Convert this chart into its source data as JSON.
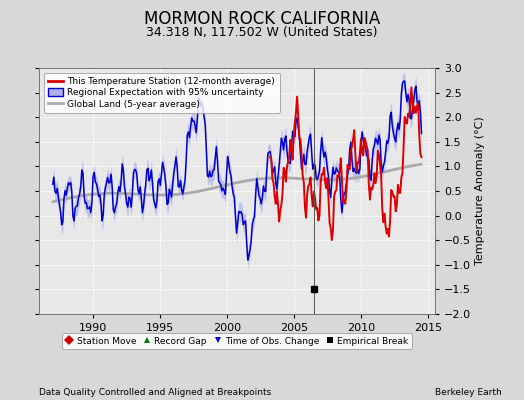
{
  "title": "MORMON ROCK CALIFORNIA",
  "subtitle": "34.318 N, 117.502 W (United States)",
  "ylabel": "Temperature Anomaly (°C)",
  "xlabel_left": "Data Quality Controlled and Aligned at Breakpoints",
  "xlabel_right": "Berkeley Earth",
  "ylim": [
    -2,
    3
  ],
  "xlim": [
    1986.0,
    2015.5
  ],
  "yticks": [
    -2,
    -1.5,
    -1,
    -0.5,
    0,
    0.5,
    1,
    1.5,
    2,
    2.5,
    3
  ],
  "xticks": [
    1990,
    1995,
    2000,
    2005,
    2010,
    2015
  ],
  "bg_color": "#d8d8d8",
  "plot_bg_color": "#e8e8e8",
  "grid_color": "#ffffff",
  "legend1_labels": [
    "This Temperature Station (12-month average)",
    "Regional Expectation with 95% uncertainty",
    "Global Land (5-year average)"
  ],
  "legend2_labels": [
    "Station Move",
    "Record Gap",
    "Time of Obs. Change",
    "Empirical Break"
  ],
  "empirical_break_x": 2006.5,
  "empirical_break_y": -1.5,
  "red_line_color": "#dd0000",
  "blue_line_color": "#0000cc",
  "blue_fill_color": "#b0b0ee",
  "gray_line_color": "#aaaaaa",
  "title_fontsize": 12,
  "subtitle_fontsize": 9,
  "tick_fontsize": 8,
  "ylabel_fontsize": 8
}
